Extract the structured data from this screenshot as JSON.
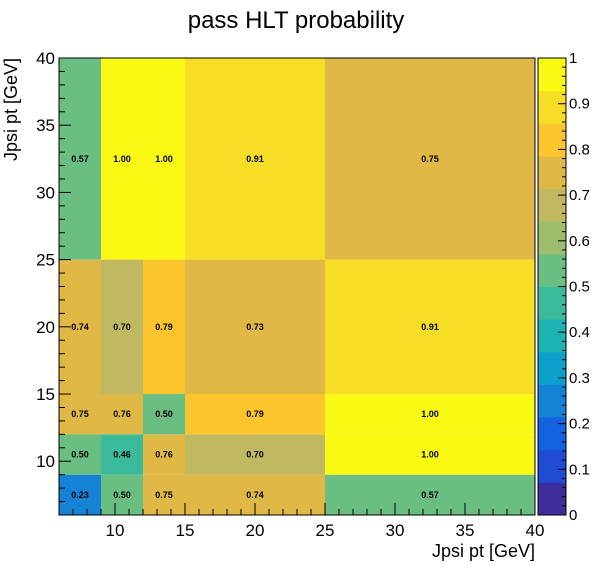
{
  "chart_data": {
    "type": "heatmap",
    "title": "pass HLT probability",
    "xlabel": "Jpsi pt [GeV]",
    "ylabel": "Jpsi pt [GeV]",
    "xlim": [
      6,
      40
    ],
    "ylim": [
      6,
      40
    ],
    "x_ticks": [
      10,
      15,
      20,
      25,
      30,
      35,
      40
    ],
    "y_ticks": [
      10,
      15,
      20,
      25,
      30,
      35,
      40
    ],
    "x_edges": [
      6,
      9,
      12,
      15,
      25,
      40
    ],
    "y_edges": [
      6,
      9,
      12,
      15,
      25,
      40
    ],
    "z_range": [
      0,
      1
    ],
    "palette_ticks": [
      "0",
      "0.1",
      "0.2",
      "0.3",
      "0.4",
      "0.5",
      "0.6",
      "0.7",
      "0.8",
      "0.9",
      "1"
    ],
    "palette_colors": [
      "#3e2e9d",
      "#1f4cd2",
      "#1362e0",
      "#1682d6",
      "#0aa0c9",
      "#1db3b4",
      "#3bbb9c",
      "#6bbe81",
      "#9cbe6c",
      "#c0b961",
      "#dfb845",
      "#fcc52e",
      "#f6dd26",
      "#f9f914"
    ],
    "values": [
      [
        "0.23",
        "0.50",
        "0.75",
        "0.74",
        "0.57"
      ],
      [
        "0.50",
        "0.46",
        "0.76",
        "0.70",
        "1.00"
      ],
      [
        "0.75",
        "0.76",
        "0.50",
        "0.79",
        "1.00"
      ],
      [
        "0.74",
        "0.70",
        "0.79",
        "0.73",
        "0.91"
      ],
      [
        "0.57",
        "1.00",
        "1.00",
        "0.91",
        "0.75"
      ]
    ]
  }
}
